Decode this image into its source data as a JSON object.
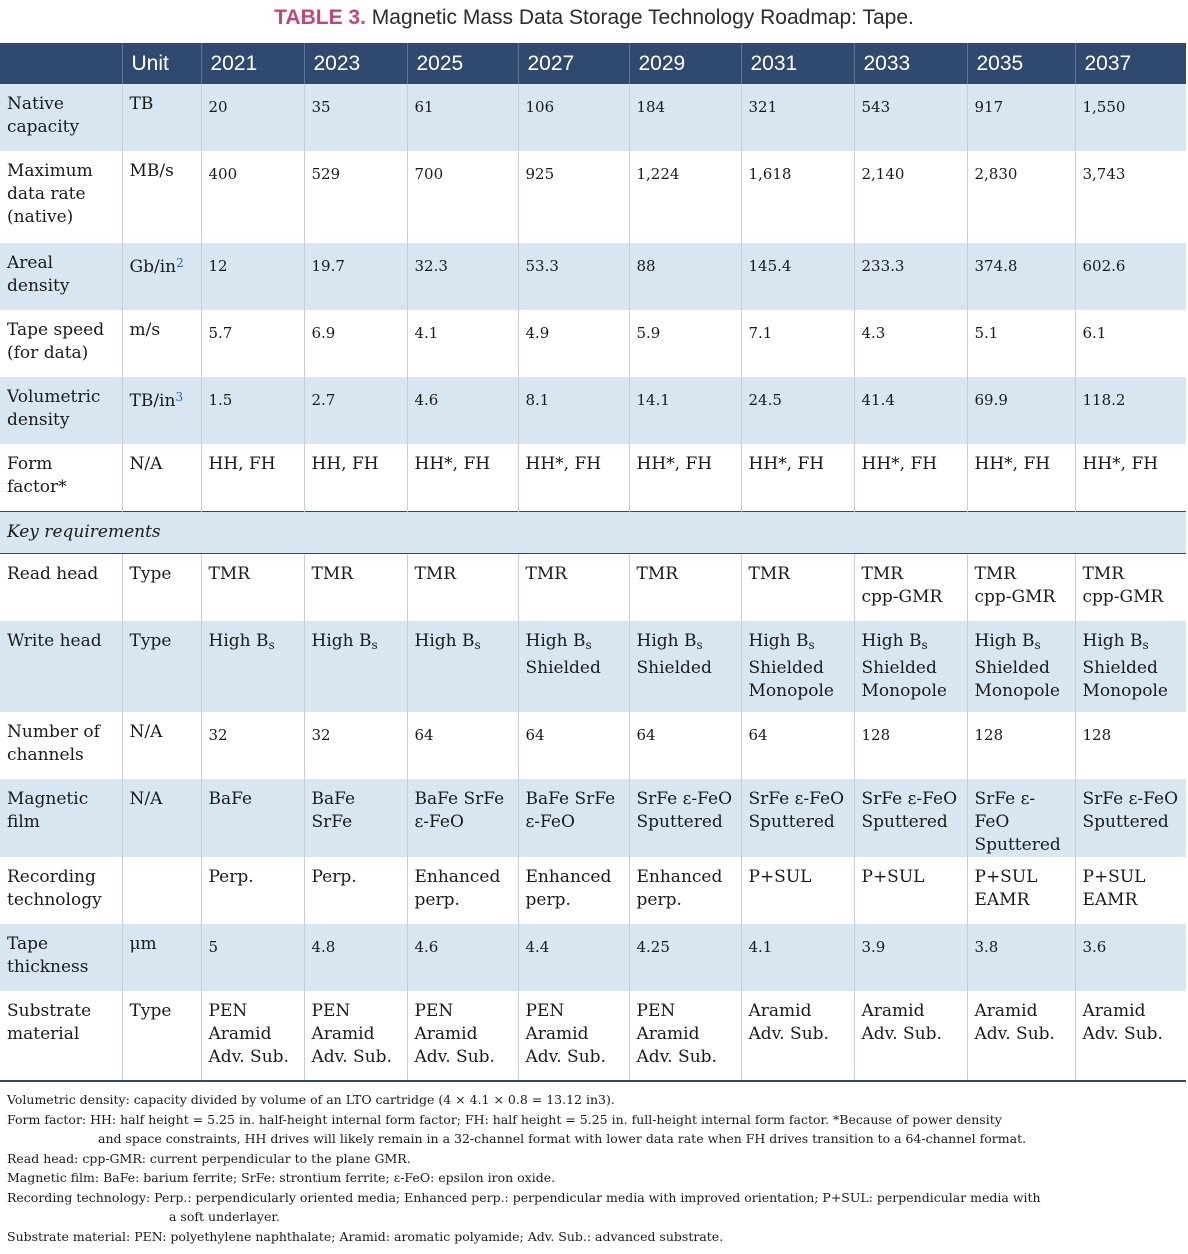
{
  "title": {
    "lead": "TABLE 3.",
    "text": "Magnetic Mass Data Storage Technology Roadmap: Tape."
  },
  "header": {
    "blank": "",
    "unit": "Unit",
    "years": [
      "2021",
      "2023",
      "2025",
      "2027",
      "2029",
      "2031",
      "2033",
      "2035",
      "2037"
    ]
  },
  "rows": [
    {
      "label": [
        "Native",
        "capacity"
      ],
      "unit": "TB",
      "values": [
        "20",
        "35",
        "61",
        "106",
        "184",
        "321",
        "543",
        "917",
        "1,550"
      ]
    },
    {
      "label": [
        "Maximum",
        "data rate",
        "(native)"
      ],
      "unit": "MB/s",
      "values": [
        "400",
        "529",
        "700",
        "925",
        "1,224",
        "1,618",
        "2,140",
        "2,830",
        "3,743"
      ]
    },
    {
      "label": [
        "Areal",
        "density"
      ],
      "unit": "Gb/in",
      "unit_sup": "2",
      "values": [
        "12",
        "19.7",
        "32.3",
        "53.3",
        "88",
        "145.4",
        "233.3",
        "374.8",
        "602.6"
      ]
    },
    {
      "label": [
        "Tape speed",
        "(for data)"
      ],
      "unit": "m/s",
      "values": [
        "5.7",
        "6.9",
        "4.1",
        "4.9",
        "5.9",
        "7.1",
        "4.3",
        "5.1",
        "6.1"
      ]
    },
    {
      "label": [
        "Volumetric",
        "density"
      ],
      "unit": "TB/in",
      "unit_sup": "3",
      "values": [
        "1.5",
        "2.7",
        "4.6",
        "8.1",
        "14.1",
        "24.5",
        "41.4",
        "69.9",
        "118.2"
      ]
    },
    {
      "label": [
        "Form",
        "factor*"
      ],
      "unit": "N/A",
      "values": [
        "HH, FH",
        "HH, FH",
        "HH*, FH",
        "HH*, FH",
        "HH*, FH",
        "HH*, FH",
        "HH*, FH",
        "HH*, FH",
        "HH*, FH"
      ]
    }
  ],
  "key_requirements_label": "Key requirements",
  "req_rows": [
    {
      "label": [
        "Read head"
      ],
      "unit": "Type",
      "values": [
        [
          "TMR"
        ],
        [
          "TMR"
        ],
        [
          "TMR"
        ],
        [
          "TMR"
        ],
        [
          "TMR"
        ],
        [
          "TMR"
        ],
        [
          "TMR",
          "cpp-GMR"
        ],
        [
          "TMR",
          "cpp-GMR"
        ],
        [
          "TMR",
          "cpp-GMR"
        ]
      ]
    },
    {
      "label": [
        "Write head"
      ],
      "unit": "Type",
      "subscript": "s",
      "values": [
        [
          "High B"
        ],
        [
          "High B"
        ],
        [
          "High B"
        ],
        [
          "High B",
          "Shielded"
        ],
        [
          "High B",
          "Shielded"
        ],
        [
          "High B",
          "Shielded",
          "Monopole"
        ],
        [
          "High B",
          "Shielded",
          "Monopole"
        ],
        [
          "High B",
          "Shielded",
          "Monopole"
        ],
        [
          "High B",
          "Shielded",
          "Monopole"
        ]
      ]
    },
    {
      "label": [
        "Number of",
        "channels"
      ],
      "unit": "N/A",
      "values": [
        [
          "32"
        ],
        [
          "32"
        ],
        [
          "64"
        ],
        [
          "64"
        ],
        [
          "64"
        ],
        [
          "64"
        ],
        [
          "128"
        ],
        [
          "128"
        ],
        [
          "128"
        ]
      ]
    },
    {
      "label": [
        "Magnetic",
        "film"
      ],
      "unit": "N/A",
      "values": [
        [
          "BaFe"
        ],
        [
          "BaFe",
          "SrFe"
        ],
        [
          "BaFe SrFe",
          "ε-FeO"
        ],
        [
          "BaFe SrFe",
          "ε-FeO"
        ],
        [
          "SrFe ε-FeO",
          "Sputtered"
        ],
        [
          "SrFe ε-FeO",
          "Sputtered"
        ],
        [
          "SrFe ε-FeO",
          "Sputtered"
        ],
        [
          "SrFe ε-FeO",
          "Sputtered"
        ],
        [
          "SrFe ε-FeO",
          "Sputtered"
        ]
      ]
    },
    {
      "label": [
        "Recording",
        "technology"
      ],
      "unit": "",
      "values": [
        [
          "Perp."
        ],
        [
          "Perp."
        ],
        [
          "Enhanced",
          "perp."
        ],
        [
          "Enhanced",
          "perp."
        ],
        [
          "Enhanced",
          "perp."
        ],
        [
          "P+SUL"
        ],
        [
          "P+SUL"
        ],
        [
          "P+SUL",
          "EAMR"
        ],
        [
          "P+SUL",
          "EAMR"
        ]
      ]
    },
    {
      "label": [
        "Tape",
        "thickness"
      ],
      "unit": "μm",
      "values": [
        [
          "5"
        ],
        [
          "4.8"
        ],
        [
          "4.6"
        ],
        [
          "4.4"
        ],
        [
          "4.25"
        ],
        [
          "4.1"
        ],
        [
          "3.9"
        ],
        [
          "3.8"
        ],
        [
          "3.6"
        ]
      ]
    },
    {
      "label": [
        "Substrate",
        "material"
      ],
      "unit": "Type",
      "values": [
        [
          "PEN",
          "Aramid",
          "Adv. Sub."
        ],
        [
          "PEN",
          "Aramid",
          "Adv. Sub."
        ],
        [
          "PEN",
          "Aramid",
          "Adv. Sub."
        ],
        [
          "PEN",
          "Aramid",
          "Adv. Sub."
        ],
        [
          "PEN",
          "Aramid",
          "Adv. Sub."
        ],
        [
          "Aramid",
          "Adv. Sub."
        ],
        [
          "Aramid",
          "Adv. Sub."
        ],
        [
          "Aramid",
          "Adv. Sub."
        ],
        [
          "Aramid",
          "Adv. Sub."
        ]
      ]
    }
  ],
  "notes": [
    {
      "lines": [
        "Volumetric density:  capacity divided by volume of an LTO cartridge (4 × 4.1 × 0.8 = 13.12 in3)."
      ]
    },
    {
      "lines": [
        "Form factor:  HH: half height = 5.25 in. half-height internal form factor; FH: half height = 5.25 in. full-height internal form factor. *Because of power density",
        "and space constraints, HH drives will likely remain in a 32-channel format with lower data rate when FH drives transition to a 64-channel format."
      ],
      "indent": "indent"
    },
    {
      "lines": [
        "Read head:  cpp-GMR: current perpendicular to the plane GMR."
      ]
    },
    {
      "lines": [
        "Magnetic film: BaFe: barium ferrite; SrFe: strontium ferrite; ε-FeO: epsilon iron oxide."
      ]
    },
    {
      "lines": [
        "Recording technology:  Perp.: perpendicularly oriented media; Enhanced perp.: perpendicular media with improved orientation; P+SUL: perpendicular media with",
        "a soft underlayer."
      ],
      "indent": "indent2"
    },
    {
      "lines": [
        "Substrate material:  PEN: polyethylene naphthalate; Aramid: aromatic polyamide; Adv. Sub.: advanced substrate."
      ]
    }
  ]
}
